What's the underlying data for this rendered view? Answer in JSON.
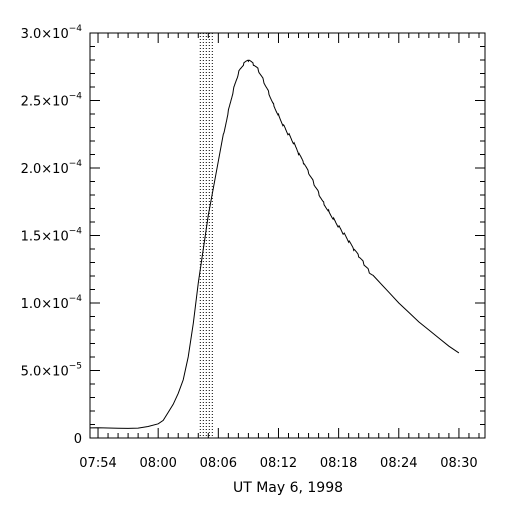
{
  "chart_data": {
    "type": "line",
    "title": "",
    "xlabel": "UT May 6, 1998",
    "ylabel": "",
    "x_range_minutes": [
      -6.8,
      32.6
    ],
    "xlim_labels": [
      "07:53:12",
      "08:32:36"
    ],
    "ylim": [
      0,
      0.0003
    ],
    "x_ticks": [
      {
        "label": "07:54",
        "minute": -6
      },
      {
        "label": "08:00",
        "minute": 0
      },
      {
        "label": "08:06",
        "minute": 6
      },
      {
        "label": "08:12",
        "minute": 12
      },
      {
        "label": "08:18",
        "minute": 18
      },
      {
        "label": "08:24",
        "minute": 24
      },
      {
        "label": "08:30",
        "minute": 30
      }
    ],
    "y_ticks": [
      {
        "value": 0,
        "mantissa": "0",
        "exp": ""
      },
      {
        "value": 5e-05,
        "mantissa": "5.0×10",
        "exp": "−5"
      },
      {
        "value": 0.0001,
        "mantissa": "1.0×10",
        "exp": "−4"
      },
      {
        "value": 0.00015,
        "mantissa": "1.5×10",
        "exp": "−4"
      },
      {
        "value": 0.0002,
        "mantissa": "2.0×10",
        "exp": "−4"
      },
      {
        "value": 0.00025,
        "mantissa": "2.5×10",
        "exp": "−4"
      },
      {
        "value": 0.0003,
        "mantissa": "3.0×10",
        "exp": "−4"
      }
    ],
    "shaded_interval_minutes": [
      4.2,
      5.5
    ],
    "grid": false,
    "series": [
      {
        "color": "#000000",
        "x": [
          -6.8,
          -6.0,
          -5.0,
          -4.0,
          -3.0,
          -2.0,
          -1.0,
          0.0,
          0.5,
          1.0,
          1.5,
          2.0,
          2.5,
          3.0,
          3.5,
          4.0,
          4.5,
          5.0,
          5.5,
          6.0,
          6.5,
          7.0,
          7.5,
          8.0,
          8.5,
          9.0,
          9.5,
          10.0,
          10.5,
          11.0,
          11.5,
          12.0,
          12.5,
          13.0,
          13.5,
          14.0,
          14.5,
          15.0,
          15.5,
          16.0,
          16.5,
          17.0,
          17.5,
          18.0,
          18.5,
          19.0,
          19.5,
          20.0,
          20.5,
          21.0,
          21.5,
          22.0,
          23.0,
          24.0,
          25.0,
          26.0,
          27.0,
          28.0,
          29.0,
          30.0
        ],
        "y": [
          7.5e-06,
          7.6e-06,
          7.4e-06,
          7.2e-06,
          7.1e-06,
          7.3e-06,
          8.5e-06,
          1.05e-05,
          1.3e-05,
          1.9e-05,
          2.5e-05,
          3.3e-05,
          4.3e-05,
          6e-05,
          8.5e-05,
          0.000115,
          0.00014,
          0.000165,
          0.000185,
          0.000205,
          0.000225,
          0.000243,
          0.000258,
          0.00027,
          0.000276,
          0.000279,
          0.000276,
          0.000272,
          0.000265,
          0.000257,
          0.000248,
          0.00024,
          0.000232,
          0.000225,
          0.000218,
          0.00021,
          0.000203,
          0.000196,
          0.000189,
          0.000182,
          0.000175,
          0.000169,
          0.000163,
          0.000157,
          0.000151,
          0.000145,
          0.000139,
          0.000134,
          0.000129,
          0.000124,
          0.00012,
          0.000116,
          0.000108,
          0.0001,
          9.3e-05,
          8.6e-05,
          8e-05,
          7.4e-05,
          6.8e-05,
          6.3e-05
        ]
      }
    ]
  }
}
